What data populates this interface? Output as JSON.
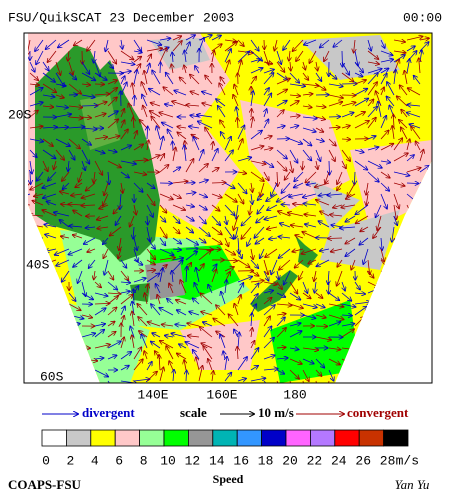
{
  "header": {
    "title": "FSU/QuikSCAT 23 December 2003",
    "time": "00:00"
  },
  "map": {
    "lat_labels": [
      "20S",
      "40S",
      "60S"
    ],
    "lon_labels": [
      "140E",
      "160E",
      "180"
    ]
  },
  "legend": {
    "divergent": "divergent",
    "scale": "scale",
    "scale_value": "10 m/s",
    "convergent": "convergent"
  },
  "colorbar": {
    "colors": [
      "#ffffff",
      "#c8c8c8",
      "#ffff00",
      "#ffc8c8",
      "#96ff96",
      "#00ff00",
      "#969696",
      "#00b4b4",
      "#3296ff",
      "#0000c8",
      "#ff64ff",
      "#b478ff",
      "#ff0000",
      "#c83200",
      "#000000"
    ],
    "labels": [
      "0",
      "2",
      "4",
      "6",
      "8",
      "10",
      "12",
      "14",
      "16",
      "18",
      "20",
      "22",
      "24",
      "26",
      "28"
    ],
    "unit": "m/s",
    "title": "Speed"
  },
  "footer": {
    "source": "COAPS-FSU",
    "author": "Yan Yu"
  }
}
